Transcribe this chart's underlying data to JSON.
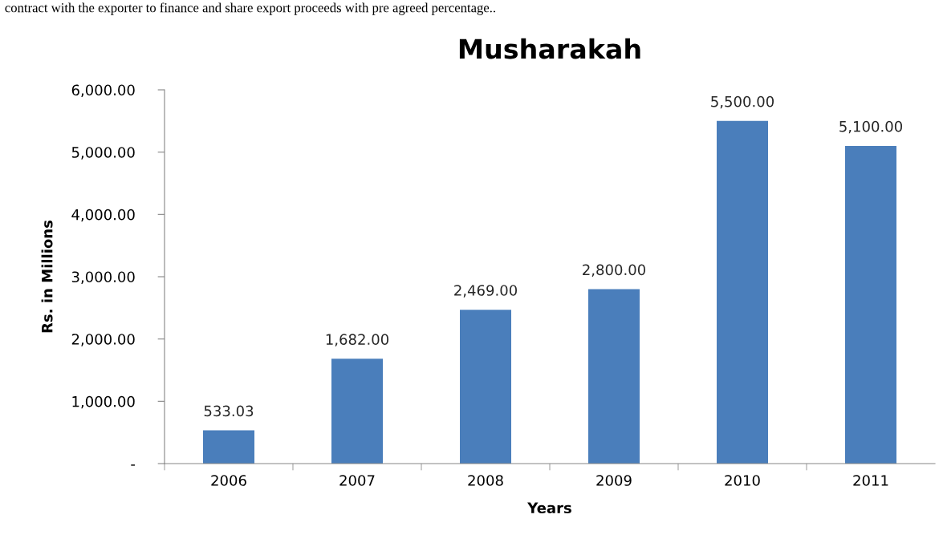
{
  "chart_data": {
    "type": "bar",
    "title": "Musharakah",
    "xlabel": "Years",
    "ylabel": "Rs. in Millions",
    "categories": [
      "2006",
      "2007",
      "2008",
      "2009",
      "2010",
      "2011"
    ],
    "values": [
      533.03,
      1682,
      2469,
      2800,
      5500,
      5100
    ],
    "value_labels": [
      "533.03",
      "1,682.00",
      "2,469.00",
      "2,800.00",
      "5,500.00",
      "5,100.00"
    ],
    "color": "#4a7ebb",
    "ylim": [
      0,
      6000
    ],
    "yticks": [
      {
        "value": 0,
        "label": "-"
      },
      {
        "value": 1000,
        "label": "1,000.00"
      },
      {
        "value": 2000,
        "label": "2,000.00"
      },
      {
        "value": 3000,
        "label": "3,000.00"
      },
      {
        "value": 4000,
        "label": "4,000.00"
      },
      {
        "value": 5000,
        "label": "5,000.00"
      },
      {
        "value": 6000,
        "label": "6,000.00"
      }
    ],
    "grid": false,
    "annotations": [
      "contract with the exporter to finance and share export proceeds with pre agreed percentage.."
    ]
  }
}
